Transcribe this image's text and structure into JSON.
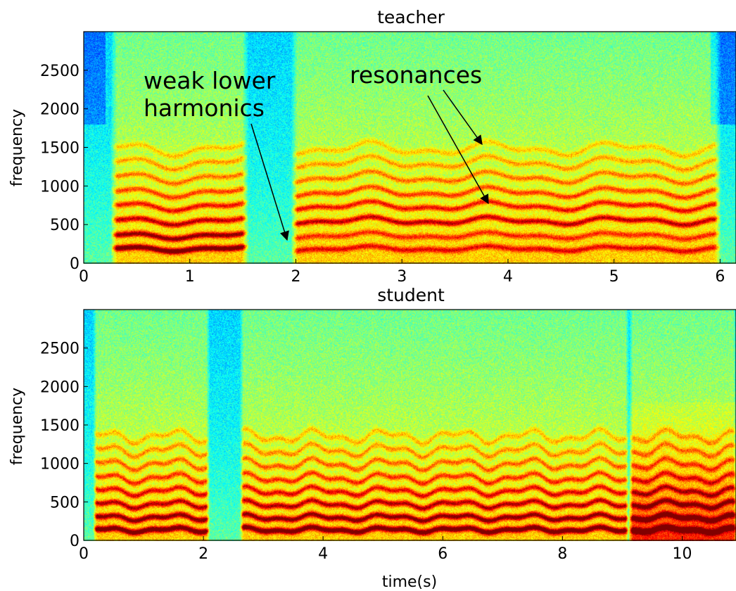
{
  "colors": {
    "colormap": "jet",
    "annotation_arrow": "#000000",
    "frame": "#000000"
  },
  "chart_data": [
    {
      "type": "heatmap",
      "subtype": "spectrogram",
      "title": "teacher",
      "xlabel": "",
      "ylabel": "frequency",
      "xlim": [
        0,
        6.15
      ],
      "ylim": [
        0,
        3000
      ],
      "xticks": [
        0,
        1,
        2,
        3,
        4,
        5,
        6
      ],
      "yticks": [
        0,
        500,
        1000,
        1500,
        2000,
        2500
      ],
      "xtick_labels": [
        "0",
        "1",
        "2",
        "3",
        "4",
        "5",
        "6"
      ],
      "ytick_labels": [
        "0",
        "500",
        "1000",
        "1500",
        "2000",
        "2500"
      ],
      "harmonic_bands_hz": [
        200,
        370,
        560,
        750,
        930,
        1120,
        1310,
        1490
      ],
      "voiced_segments_s": [
        [
          0.25,
          1.55
        ],
        [
          1.95,
          6.0
        ]
      ],
      "annotations": [
        {
          "text": "weak lower\nharmonics",
          "lines": [
            "weak lower",
            "harmonics"
          ],
          "text_at": [
            0.55,
            2480
          ],
          "arrows": [
            {
              "from": [
                1.57,
                1800
              ],
              "to": [
                1.93,
                280
              ]
            }
          ]
        },
        {
          "text": "resonances",
          "lines": [
            "resonances"
          ],
          "text_at": [
            2.5,
            2420
          ],
          "arrows": [
            {
              "from": [
                3.4,
                2250
              ],
              "to": [
                3.83,
                1500
              ]
            },
            {
              "from": [
                3.25,
                2120
              ],
              "to": [
                3.82,
                770
              ]
            }
          ]
        }
      ]
    },
    {
      "type": "heatmap",
      "subtype": "spectrogram",
      "title": "student",
      "xlabel": "time(s)",
      "ylabel": "frequency",
      "xlim": [
        0,
        10.9
      ],
      "ylim": [
        0,
        3000
      ],
      "xticks": [
        0,
        2,
        4,
        6,
        8,
        10
      ],
      "yticks": [
        0,
        500,
        1000,
        1500,
        2000,
        2500
      ],
      "xtick_labels": [
        "0",
        "2",
        "4",
        "6",
        "8",
        "10"
      ],
      "ytick_labels": [
        "0",
        "500",
        "1000",
        "1500",
        "2000",
        "2500"
      ],
      "harmonic_bands_hz": [
        150,
        310,
        480,
        650,
        820,
        1000,
        1180,
        1360
      ],
      "voiced_segments_s": [
        [
          0.15,
          2.1
        ],
        [
          2.6,
          9.1
        ],
        [
          9.1,
          10.9
        ]
      ],
      "annotations": []
    }
  ]
}
